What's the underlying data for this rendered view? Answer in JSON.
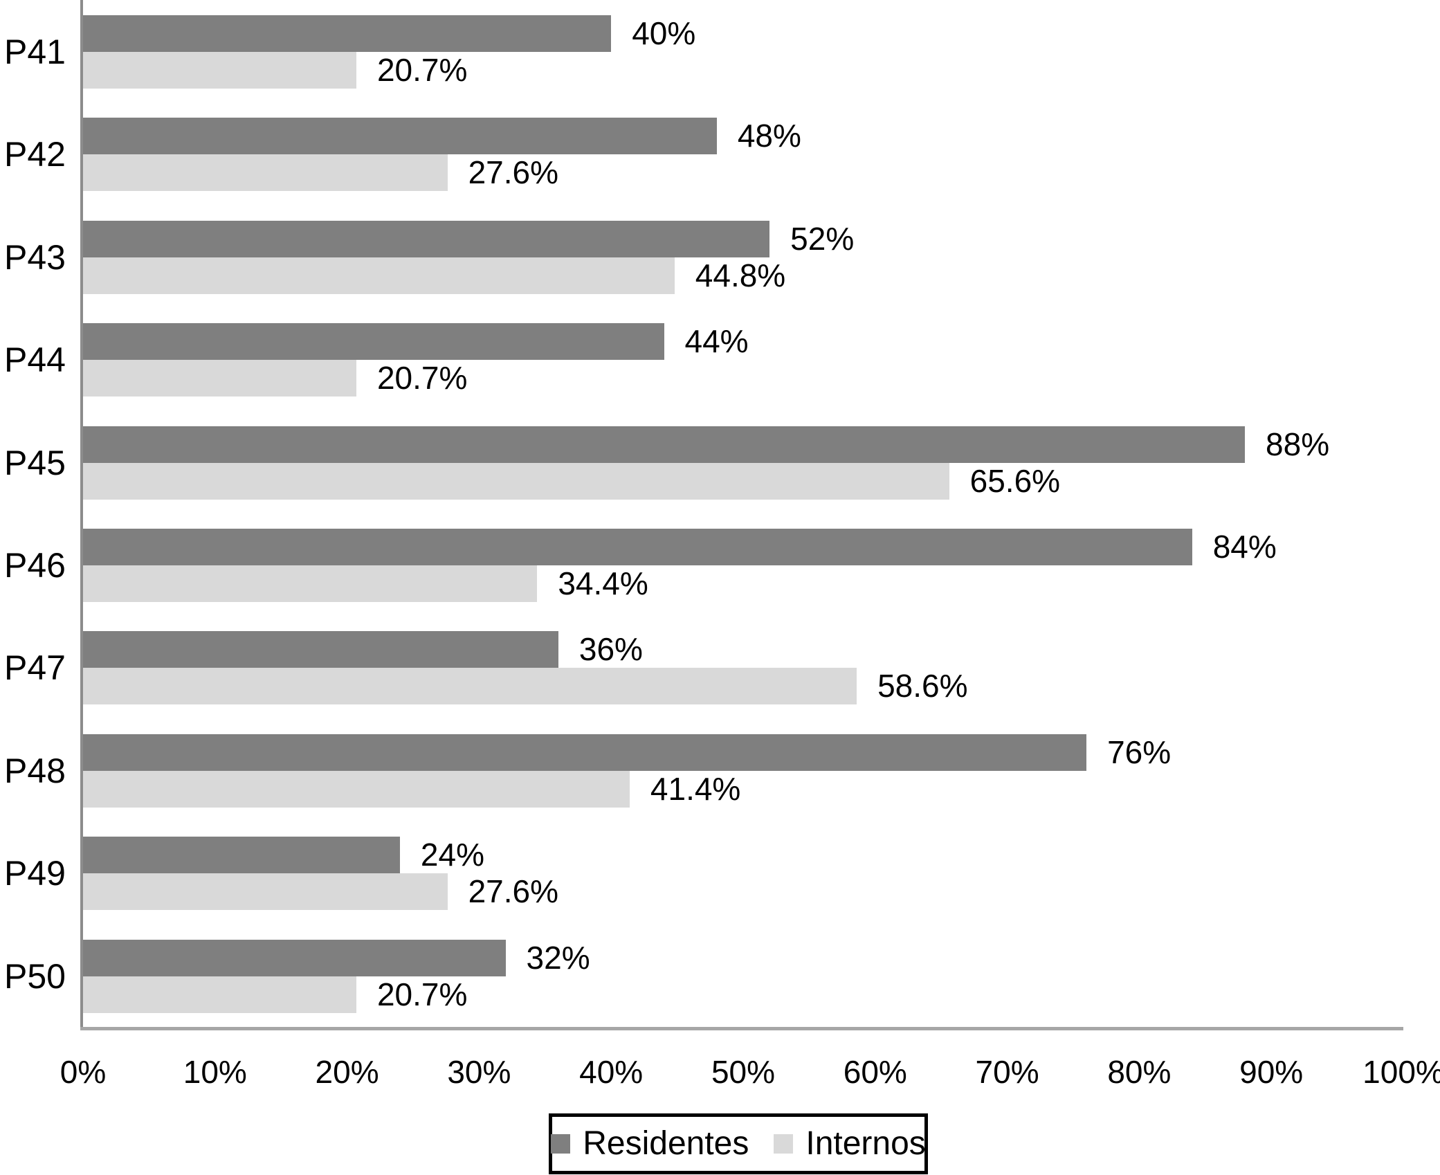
{
  "chart_data": {
    "type": "bar",
    "orientation": "horizontal",
    "grouped": true,
    "title": "",
    "xlabel": "",
    "ylabel": "",
    "categories": [
      "P41",
      "P42",
      "P43",
      "P44",
      "P45",
      "P46",
      "P47",
      "P48",
      "P49",
      "P50"
    ],
    "series": [
      {
        "name": "Residentes",
        "color": "#7f7f7f",
        "values": [
          40,
          48,
          52,
          44,
          88,
          84,
          36,
          76,
          24,
          32
        ],
        "labels": [
          "40%",
          "48%",
          "52%",
          "44%",
          "88%",
          "84%",
          "36%",
          "76%",
          "24%",
          "32%"
        ]
      },
      {
        "name": "Internos",
        "color": "#d9d9d9",
        "values": [
          20.7,
          27.6,
          44.8,
          20.7,
          65.6,
          34.4,
          58.6,
          41.4,
          27.6,
          20.7
        ],
        "labels": [
          "20.7%",
          "27.6%",
          "44.8%",
          "20.7%",
          "65.6%",
          "34.4%",
          "58.6%",
          "41.4%",
          "27.6%",
          "20.7%"
        ]
      }
    ],
    "x_axis": {
      "min": 0,
      "max": 100,
      "tick_labels": [
        "0%",
        "10%",
        "20%",
        "30%",
        "40%",
        "50%",
        "60%",
        "70%",
        "80%",
        "90%",
        "100%"
      ]
    },
    "grid": false,
    "legend_position": "bottom-center",
    "axis_color": "#a6a6a6",
    "text_color": "#000000",
    "legend_border_color": "#000000"
  }
}
